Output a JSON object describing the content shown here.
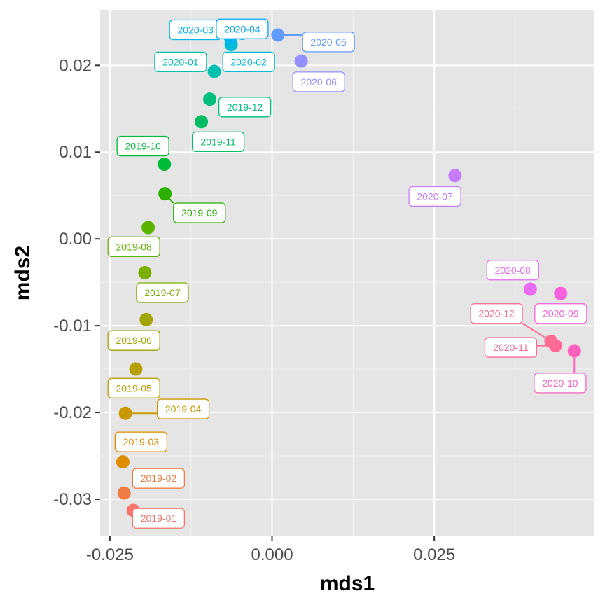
{
  "chart_data": {
    "type": "scatter",
    "title": "",
    "xlabel": "mds1",
    "ylabel": "mds2",
    "xlim": [
      -0.0265,
      0.0497
    ],
    "ylim": [
      -0.0342,
      0.0264
    ],
    "x_ticks": [
      -0.025,
      0.0,
      0.025
    ],
    "x_tick_labels": [
      "-0.025",
      "0.000",
      "0.025"
    ],
    "y_ticks": [
      -0.03,
      -0.02,
      -0.01,
      0.0,
      0.01,
      0.02
    ],
    "y_tick_labels": [
      "-0.03",
      "-0.02",
      "-0.01",
      "0.00",
      "0.01",
      "0.02"
    ],
    "grid": true,
    "background": "#e5e5e5",
    "points": [
      {
        "label": "2019-01",
        "x": -0.0214,
        "y": -0.0313,
        "color": "#F8766D",
        "lx": -0.0175,
        "ly": -0.0322
      },
      {
        "label": "2019-02",
        "x": -0.0228,
        "y": -0.0293,
        "color": "#EE7C45",
        "lx": -0.0175,
        "ly": -0.0276
      },
      {
        "label": "2019-03",
        "x": -0.023,
        "y": -0.0257,
        "color": "#DE8C00",
        "lx": -0.0202,
        "ly": -0.0234
      },
      {
        "label": "2019-04",
        "x": -0.0226,
        "y": -0.0201,
        "color": "#C99800",
        "lx": -0.0137,
        "ly": -0.0196
      },
      {
        "label": "2019-05",
        "x": -0.021,
        "y": -0.015,
        "color": "#B79F00",
        "lx": -0.0213,
        "ly": -0.0172
      },
      {
        "label": "2019-06",
        "x": -0.0194,
        "y": -0.0093,
        "color": "#A3A500",
        "lx": -0.0213,
        "ly": -0.0117
      },
      {
        "label": "2019-07",
        "x": -0.0196,
        "y": -0.0039,
        "color": "#7CAE00",
        "lx": -0.0169,
        "ly": -0.0062
      },
      {
        "label": "2019-08",
        "x": -0.0191,
        "y": 0.0013,
        "color": "#5BB300",
        "lx": -0.0213,
        "ly": -0.0009
      },
      {
        "label": "2019-09",
        "x": -0.0165,
        "y": 0.0052,
        "color": "#2BAF00",
        "lx": -0.0112,
        "ly": 0.003
      },
      {
        "label": "2019-10",
        "x": -0.0166,
        "y": 0.0086,
        "color": "#00BA38",
        "lx": -0.0199,
        "ly": 0.0107
      },
      {
        "label": "2019-11",
        "x": -0.0109,
        "y": 0.0135,
        "color": "#00BC62",
        "lx": -0.0083,
        "ly": 0.0112
      },
      {
        "label": "2019-12",
        "x": -0.0096,
        "y": 0.0161,
        "color": "#00BF7D",
        "lx": -0.0042,
        "ly": 0.0152
      },
      {
        "label": "2020-01",
        "x": -0.0089,
        "y": 0.0193,
        "color": "#00C0AF",
        "lx": -0.0141,
        "ly": 0.0204
      },
      {
        "label": "2020-02",
        "x": -0.0063,
        "y": 0.0224,
        "color": "#00BCD8",
        "lx": -0.0036,
        "ly": 0.0204
      },
      {
        "label": "2020-03",
        "x": -0.0064,
        "y": 0.0232,
        "color": "#00B5EE",
        "lx": -0.0118,
        "ly": 0.0241
      },
      {
        "label": "2020-04",
        "x": -0.0046,
        "y": 0.0237,
        "color": "#00A9FF",
        "lx": -0.0046,
        "ly": 0.0242
      },
      {
        "label": "2020-05",
        "x": 0.0009,
        "y": 0.0235,
        "color": "#619CFF",
        "lx": 0.0087,
        "ly": 0.0227
      },
      {
        "label": "2020-06",
        "x": 0.0045,
        "y": 0.0205,
        "color": "#9590FF",
        "lx": 0.0072,
        "ly": 0.0181
      },
      {
        "label": "2020-07",
        "x": 0.0282,
        "y": 0.0073,
        "color": "#C77CFF",
        "lx": 0.0251,
        "ly": 0.0049
      },
      {
        "label": "2020-08",
        "x": 0.0398,
        "y": -0.0058,
        "color": "#E76BF3",
        "lx": 0.0371,
        "ly": -0.0036
      },
      {
        "label": "2020-09",
        "x": 0.0445,
        "y": -0.0063,
        "color": "#FA62DB",
        "lx": 0.0445,
        "ly": -0.0086
      },
      {
        "label": "2020-10",
        "x": 0.0466,
        "y": -0.0129,
        "color": "#FF62BC",
        "lx": 0.0444,
        "ly": -0.0166
      },
      {
        "label": "2020-11",
        "x": 0.0437,
        "y": -0.0123,
        "color": "#FF6A98",
        "lx": 0.0368,
        "ly": -0.0125
      },
      {
        "label": "2020-12",
        "x": 0.043,
        "y": -0.0118,
        "color": "#FF6C91",
        "lx": 0.0346,
        "ly": -0.0086
      }
    ]
  }
}
